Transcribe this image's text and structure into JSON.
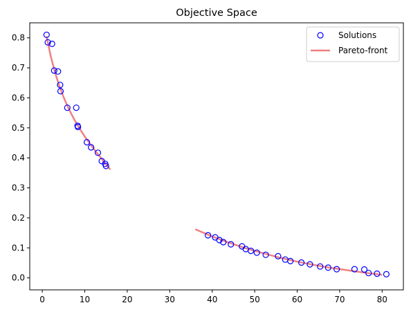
{
  "chart_data": {
    "type": "scatter",
    "title": "Objective Space",
    "xlabel": "",
    "ylabel": "",
    "xlim": [
      -2.95,
      85.0
    ],
    "ylim": [
      -0.04,
      0.85
    ],
    "xticks": [
      0,
      10,
      20,
      30,
      40,
      50,
      60,
      70,
      80
    ],
    "yticks": [
      0.0,
      0.1,
      0.2,
      0.3,
      0.4,
      0.5,
      0.6,
      0.7,
      0.8
    ],
    "xtick_labels": [
      "0",
      "10",
      "20",
      "30",
      "40",
      "50",
      "60",
      "70",
      "80"
    ],
    "ytick_labels": [
      "0.0",
      "0.1",
      "0.2",
      "0.3",
      "0.4",
      "0.5",
      "0.6",
      "0.7",
      "0.8"
    ],
    "grid": false,
    "legend": {
      "position": "top-right",
      "entries": [
        "Solutions",
        "Pareto-front"
      ]
    },
    "colors": {
      "points": "#0000ff",
      "front": "#f08080"
    },
    "series": [
      {
        "name": "Solutions",
        "kind": "scatter",
        "points": [
          [
            1.0,
            0.81
          ],
          [
            1.3,
            0.785
          ],
          [
            2.3,
            0.78
          ],
          [
            2.8,
            0.691
          ],
          [
            3.7,
            0.688
          ],
          [
            4.2,
            0.643
          ],
          [
            4.3,
            0.622
          ],
          [
            5.9,
            0.567
          ],
          [
            8.0,
            0.567
          ],
          [
            8.3,
            0.507
          ],
          [
            8.4,
            0.503
          ],
          [
            10.5,
            0.452
          ],
          [
            11.5,
            0.435
          ],
          [
            13.1,
            0.417
          ],
          [
            14.0,
            0.389
          ],
          [
            14.8,
            0.38
          ],
          [
            15.0,
            0.373
          ],
          [
            39.0,
            0.142
          ],
          [
            40.7,
            0.135
          ],
          [
            41.7,
            0.126
          ],
          [
            42.6,
            0.119
          ],
          [
            44.4,
            0.112
          ],
          [
            47.0,
            0.105
          ],
          [
            47.9,
            0.096
          ],
          [
            49.1,
            0.09
          ],
          [
            50.5,
            0.084
          ],
          [
            52.6,
            0.077
          ],
          [
            55.5,
            0.072
          ],
          [
            57.2,
            0.061
          ],
          [
            58.4,
            0.056
          ],
          [
            61.0,
            0.051
          ],
          [
            63.0,
            0.045
          ],
          [
            65.4,
            0.038
          ],
          [
            67.3,
            0.034
          ],
          [
            69.3,
            0.029
          ],
          [
            73.5,
            0.029
          ],
          [
            75.8,
            0.028
          ],
          [
            76.8,
            0.016
          ],
          [
            78.8,
            0.014
          ],
          [
            81.0,
            0.012
          ]
        ]
      },
      {
        "name": "Pareto-front",
        "kind": "line",
        "segments": [
          [
            [
              1.0,
              0.805
            ],
            [
              2.0,
              0.738
            ],
            [
              3.0,
              0.685
            ],
            [
              4.0,
              0.64
            ],
            [
              5.0,
              0.603
            ],
            [
              6.0,
              0.57
            ],
            [
              7.0,
              0.542
            ],
            [
              8.0,
              0.516
            ],
            [
              9.0,
              0.493
            ],
            [
              10.0,
              0.471
            ],
            [
              11.0,
              0.451
            ],
            [
              12.0,
              0.432
            ],
            [
              13.0,
              0.414
            ],
            [
              14.0,
              0.396
            ],
            [
              15.0,
              0.378
            ],
            [
              16.0,
              0.361
            ]
          ],
          [
            [
              36.0,
              0.162
            ],
            [
              40.0,
              0.138
            ],
            [
              44.0,
              0.117
            ],
            [
              48.0,
              0.098
            ],
            [
              52.0,
              0.082
            ],
            [
              56.0,
              0.067
            ],
            [
              60.0,
              0.054
            ],
            [
              64.0,
              0.043
            ],
            [
              68.0,
              0.033
            ],
            [
              72.0,
              0.025
            ],
            [
              76.0,
              0.017
            ],
            [
              80.0,
              0.01
            ]
          ]
        ]
      }
    ]
  }
}
